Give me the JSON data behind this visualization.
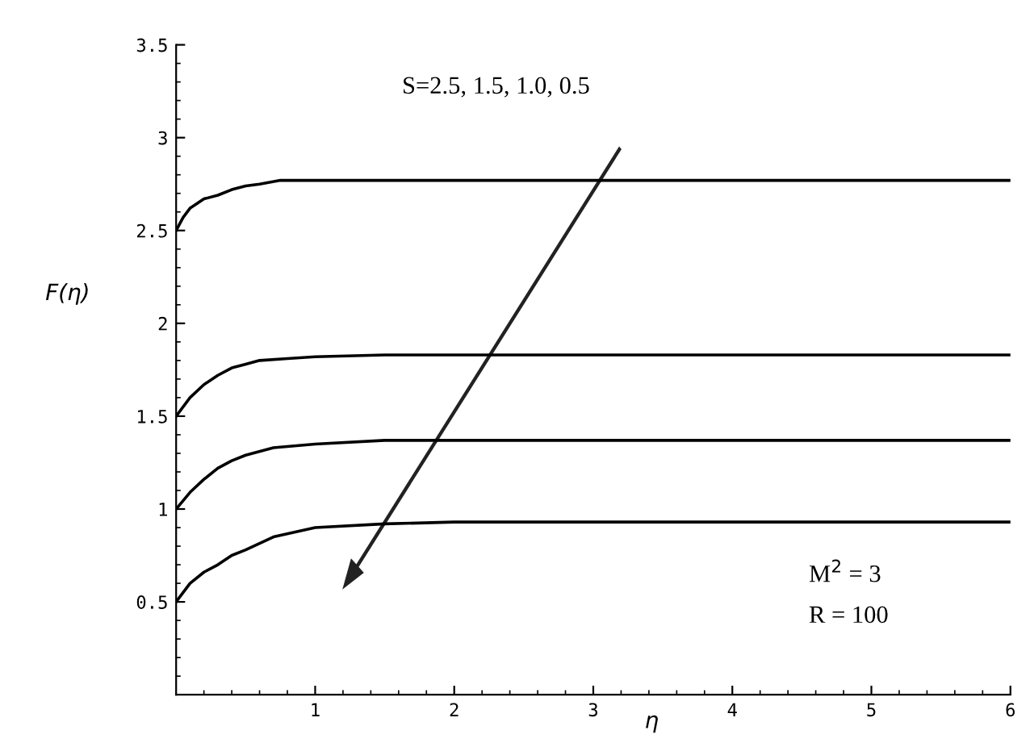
{
  "chart_data": {
    "type": "line",
    "xlabel": "η",
    "ylabel": "F(η)",
    "xlim": [
      0,
      6
    ],
    "ylim": [
      0,
      3.5
    ],
    "xticks": [
      1,
      2,
      3,
      4,
      5,
      6
    ],
    "yticks": [
      0.5,
      1,
      1.5,
      2,
      2.5,
      3,
      3.5
    ],
    "grid": false,
    "legend": false,
    "marker": "none",
    "line_style": "solid",
    "annotations": [
      "S=2.5, 1.5, 1.0, 0.5",
      "M$^{2}$ = 3",
      "R = 100"
    ],
    "series": [
      {
        "color": "#000000",
        "x": [
          0,
          0.05,
          0.1,
          0.2,
          0.3,
          0.4,
          0.5,
          0.6,
          0.75,
          1,
          2,
          3,
          4,
          5,
          6
        ],
        "values": [
          2.5,
          2.57,
          2.62,
          2.67,
          2.69,
          2.72,
          2.74,
          2.75,
          2.77,
          2.77,
          2.77,
          2.77,
          2.77,
          2.77,
          2.77
        ]
      },
      {
        "color": "#000000",
        "x": [
          0,
          0.1,
          0.2,
          0.3,
          0.4,
          0.5,
          0.6,
          0.8,
          1,
          1.5,
          2,
          3,
          4,
          5,
          6
        ],
        "values": [
          1.5,
          1.6,
          1.67,
          1.72,
          1.76,
          1.78,
          1.8,
          1.81,
          1.82,
          1.83,
          1.83,
          1.83,
          1.83,
          1.83,
          1.83
        ]
      },
      {
        "color": "#000000",
        "x": [
          0,
          0.1,
          0.2,
          0.3,
          0.4,
          0.5,
          0.7,
          1,
          1.5,
          2,
          3,
          4,
          5,
          6
        ],
        "values": [
          1.0,
          1.09,
          1.16,
          1.22,
          1.26,
          1.29,
          1.33,
          1.35,
          1.37,
          1.37,
          1.37,
          1.37,
          1.37,
          1.37
        ]
      },
      {
        "color": "#000000",
        "x": [
          0,
          0.1,
          0.2,
          0.3,
          0.4,
          0.5,
          0.7,
          1,
          1.5,
          2,
          3,
          4,
          5,
          6
        ],
        "values": [
          0.5,
          0.6,
          0.66,
          0.7,
          0.75,
          0.78,
          0.85,
          0.9,
          0.92,
          0.93,
          0.93,
          0.93,
          0.93,
          0.93
        ]
      }
    ]
  }
}
